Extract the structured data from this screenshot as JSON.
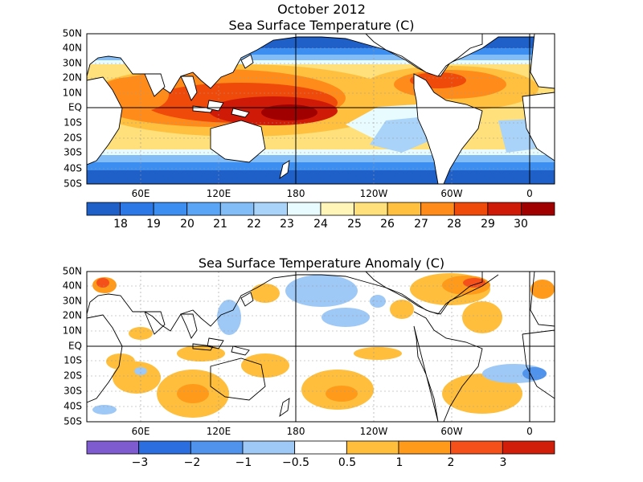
{
  "header": {
    "period": "October 2012"
  },
  "maps": [
    {
      "id": "sst",
      "title": "Sea Surface Temperature (C)",
      "lat_labels": [
        "50N",
        "40N",
        "30N",
        "20N",
        "10N",
        "EQ",
        "10S",
        "20S",
        "30S",
        "40S",
        "50S"
      ],
      "lon_labels": [
        "60E",
        "120E",
        "180",
        "120W",
        "60W",
        "0"
      ],
      "colorbar": {
        "colors": [
          "#1f5fc8",
          "#2b78e6",
          "#3c8ef0",
          "#5aa5f5",
          "#82bdf7",
          "#a9d3f8",
          "#e8fbff",
          "#fff5b8",
          "#ffe07a",
          "#ffc040",
          "#ff8c1a",
          "#f04a0a",
          "#d01a08",
          "#a00000"
        ],
        "tick_labels": [
          "18",
          "19",
          "20",
          "21",
          "22",
          "23",
          "24",
          "25",
          "26",
          "27",
          "28",
          "29",
          "30"
        ]
      }
    },
    {
      "id": "anomaly",
      "title": "Sea Surface Temperature Anomaly (C)",
      "lat_labels": [
        "50N",
        "40N",
        "30N",
        "20N",
        "10N",
        "EQ",
        "10S",
        "20S",
        "30S",
        "40S",
        "50S"
      ],
      "lon_labels": [
        "60E",
        "120E",
        "180",
        "120W",
        "60W",
        "0"
      ],
      "colorbar": {
        "colors": [
          "#7f5bd0",
          "#2b6ee0",
          "#4f93ec",
          "#9ec8f5",
          "#ffffff",
          "#ffbe3c",
          "#ff9a1a",
          "#f5501a",
          "#d01e0a"
        ],
        "tick_labels": [
          "−3",
          "−2",
          "−1",
          "−0.5",
          "0.5",
          "1",
          "2",
          "3"
        ]
      }
    }
  ]
}
